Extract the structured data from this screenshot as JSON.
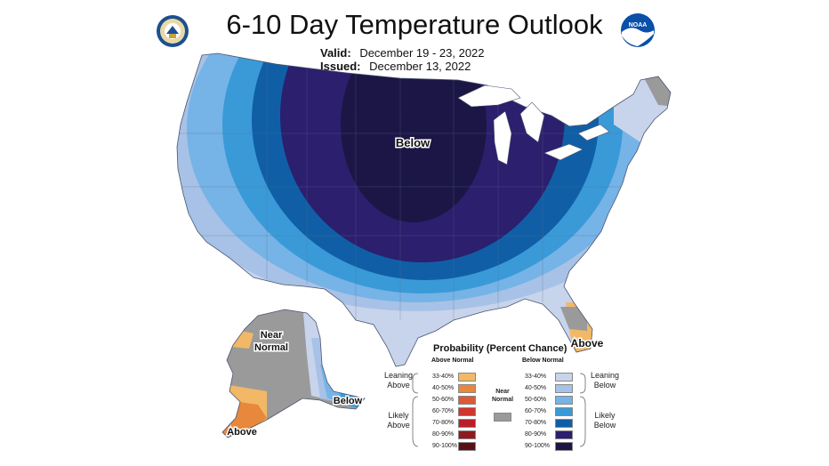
{
  "header": {
    "title": "6-10 Day Temperature Outlook",
    "valid_label": "Valid:",
    "valid_value": "December 19 - 23, 2022",
    "issued_label": "Issued:",
    "issued_value": "December 13, 2022"
  },
  "logos": {
    "left": "commerce-seal-icon",
    "right": "noaa-logo-icon",
    "noaa_text": "NOAA"
  },
  "map_labels": {
    "conus_center": "Below",
    "florida": "Above",
    "alaska_north_line1": "Near",
    "alaska_north_line2": "Normal",
    "alaska_south": "Above",
    "alaska_southeast": "Below"
  },
  "legend": {
    "title": "Probability (Percent Chance)",
    "above_header": "Above Normal",
    "below_header": "Below Normal",
    "leaning_above_1": "Leaning",
    "leaning_above_2": "Above",
    "likely_above_1": "Likely",
    "likely_above_2": "Above",
    "leaning_below_1": "Leaning",
    "leaning_below_2": "Below",
    "likely_below_1": "Likely",
    "likely_below_2": "Below",
    "near_1": "Near",
    "near_2": "Normal",
    "near_color": "#9a9a9a",
    "above": [
      {
        "label": "33-40%",
        "color": "#f2b866"
      },
      {
        "label": "40-50%",
        "color": "#e8883c"
      },
      {
        "label": "50-60%",
        "color": "#dc5a35"
      },
      {
        "label": "60-70%",
        "color": "#d2342e"
      },
      {
        "label": "70-80%",
        "color": "#b81f2a"
      },
      {
        "label": "80-90%",
        "color": "#8e1a1f"
      },
      {
        "label": "90-100%",
        "color": "#5a0f12"
      }
    ],
    "below": [
      {
        "label": "33-40%",
        "color": "#c8d4ec"
      },
      {
        "label": "40-50%",
        "color": "#a7c2e6"
      },
      {
        "label": "50-60%",
        "color": "#76b3e6"
      },
      {
        "label": "60-70%",
        "color": "#3a9ad8"
      },
      {
        "label": "70-80%",
        "color": "#105fa6"
      },
      {
        "label": "80-90%",
        "color": "#2b1f6e"
      },
      {
        "label": "90-100%",
        "color": "#1c1646"
      }
    ]
  }
}
